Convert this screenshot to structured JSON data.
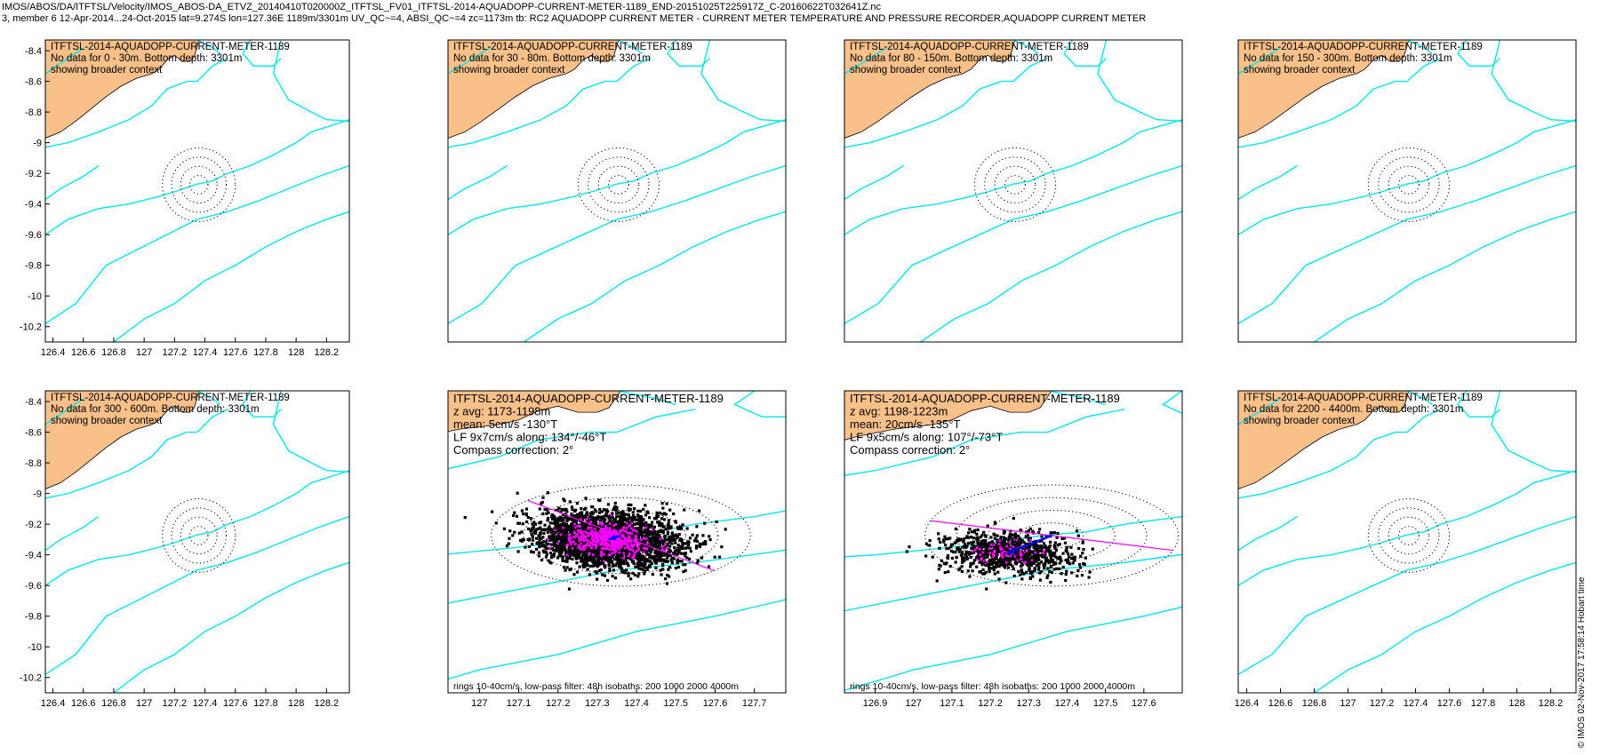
{
  "header": {
    "line1": "IMOS/ABOS/DA/ITFTSL/Velocity/IMOS_ABOS-DA_ETVZ_20140410T020000Z_ITFTSL_FV01_ITFTSL-2014-AQUADOPP-CURRENT-METER-1189_END-20151025T225917Z_C-20160622T032641Z.nc",
    "line2": "3, member 6 12-Apr-2014...24-Oct-2015 lat=9.274S lon=127.36E 1189m/3301m UV_QC~=4, ABSI_QC~=4 zc=1173m tb: RC2 AQUADOPP CURRENT METER - CURRENT METER TEMPERATURE AND PRESSURE RECORDER,AQUADOPP CURRENT METER"
  },
  "stamp": "© IMOS 02-Nov-2017 17:58:14 Hobart time",
  "colors": {
    "land": "#f9c08a",
    "isobath": "#00e5ee",
    "rings": "#000000",
    "scatter": "#000000",
    "lowpass": "#ff00ff",
    "major_axis": "#ff00ff",
    "mean_arrow": "#0000ff"
  },
  "chart_data": [
    {
      "type": "map",
      "panel": "1",
      "text_lines": [
        "ITFTSL-2014-AQUADOPP-CURRENT-METER-1189",
        "No data for 0 - 30m. Bottom depth: 3301m",
        "showing broader context"
      ],
      "xlim": [
        126.35,
        128.35
      ],
      "ylim": [
        -10.3,
        -8.33
      ],
      "xticks": [
        126.4,
        126.6,
        126.8,
        127,
        127.2,
        127.4,
        127.6,
        127.8,
        128,
        128.2
      ],
      "yticks": [
        -8.4,
        -8.6,
        -8.8,
        -9,
        -9.2,
        -9.4,
        -9.6,
        -9.8,
        -10,
        -10.2
      ],
      "center": [
        127.36,
        -9.274
      ],
      "rings_deg": [
        0.06,
        0.12,
        0.18,
        0.24
      ]
    },
    {
      "type": "map",
      "panel": "2",
      "text_lines": [
        "ITFTSL-2014-AQUADOPP-CURRENT-METER-1189",
        "No data for 30 - 80m. Bottom depth: 3301m",
        "showing broader context"
      ],
      "xlim": [
        126.35,
        128.35
      ],
      "ylim": [
        -10.3,
        -8.33
      ],
      "center": [
        127.36,
        -9.274
      ],
      "rings_deg": [
        0.06,
        0.12,
        0.18,
        0.24
      ]
    },
    {
      "type": "map",
      "panel": "3",
      "text_lines": [
        "ITFTSL-2014-AQUADOPP-CURRENT-METER-1189",
        "No data for 80 - 150m. Bottom depth: 3301m",
        "showing broader context"
      ],
      "xlim": [
        126.35,
        128.35
      ],
      "ylim": [
        -10.3,
        -8.33
      ],
      "center": [
        127.36,
        -9.274
      ],
      "rings_deg": [
        0.06,
        0.12,
        0.18,
        0.24
      ]
    },
    {
      "type": "map",
      "panel": "4",
      "text_lines": [
        "ITFTSL-2014-AQUADOPP-CURRENT-METER-1189",
        "No data for 150 - 300m. Bottom depth: 3301m",
        "showing broader context"
      ],
      "xlim": [
        126.35,
        128.35
      ],
      "ylim": [
        -10.3,
        -8.33
      ],
      "center": [
        127.36,
        -9.274
      ],
      "rings_deg": [
        0.06,
        0.12,
        0.18,
        0.24
      ]
    },
    {
      "type": "map",
      "panel": "5",
      "text_lines": [
        "ITFTSL-2014-AQUADOPP-CURRENT-METER-1189",
        "No data for 300 - 600m. Bottom depth: 3301m",
        "showing broader context"
      ],
      "xlim": [
        126.35,
        128.35
      ],
      "ylim": [
        -10.3,
        -8.33
      ],
      "xticks": [
        126.4,
        126.6,
        126.8,
        127,
        127.2,
        127.4,
        127.6,
        127.8,
        128,
        128.2
      ],
      "yticks": [
        -8.4,
        -8.6,
        -8.8,
        -9,
        -9.2,
        -9.4,
        -9.6,
        -9.8,
        -10,
        -10.2
      ],
      "center": [
        127.36,
        -9.274
      ],
      "rings_deg": [
        0.06,
        0.12,
        0.18,
        0.24
      ]
    },
    {
      "type": "scatter",
      "panel": "6",
      "text_lines": [
        "ITFTSL-2014-AQUADOPP-CURRENT-METER-1189",
        "z avg: 1173-1198m",
        "mean: 5cm/s -130°T",
        "LF 9x7cm/s along: 134°/-46°T",
        "Compass correction: 2°"
      ],
      "footer": "rings 10-40cm/s, low-pass filter: 48h isobaths: 200 1000 2000 4000m",
      "xlim": [
        126.92,
        127.78
      ],
      "ylim": [
        -10.3,
        -8.33
      ],
      "xticks": [
        127,
        127.1,
        127.2,
        127.3,
        127.4,
        127.5,
        127.6,
        127.7
      ],
      "center": [
        127.36,
        -9.274
      ],
      "rings_deg": [
        0.0825,
        0.165,
        0.2475,
        0.33
      ],
      "scatter": {
        "spread_cm_s": [
          12,
          10
        ],
        "n_points": 2600,
        "n_lowpass": 450
      },
      "major_axis_deg_true": 134,
      "mean_vector": {
        "speed_cm_s": 5,
        "dir_deg_true": -130
      }
    },
    {
      "type": "scatter",
      "panel": "7",
      "text_lines": [
        "ITFTSL-2014-AQUADOPP-CURRENT-METER-1189",
        "z avg: 1198-1223m",
        "mean: 20cm/s -135°T",
        "LF 9x5cm/s along: 107°/-73°T",
        "Compass correction: 2°"
      ],
      "footer": "rings 10-40cm/s, low-pass filter: 48h isobaths: 200 1000 2000 4000m",
      "xlim": [
        126.82,
        127.7
      ],
      "ylim": [
        -10.3,
        -8.33
      ],
      "xticks": [
        126.9,
        127,
        127.1,
        127.2,
        127.3,
        127.4,
        127.5,
        127.6
      ],
      "center": [
        127.36,
        -9.274
      ],
      "rings_deg": [
        0.0825,
        0.165,
        0.2475,
        0.33
      ],
      "scatter": {
        "spread_cm_s": [
          10,
          8
        ],
        "n_points": 900,
        "n_lowpass": 60
      },
      "major_axis_deg_true": 107,
      "mean_vector": {
        "speed_cm_s": 20,
        "dir_deg_true": -135
      }
    },
    {
      "type": "map",
      "panel": "8",
      "text_lines": [
        "ITFTSL-2014-AQUADOPP-CURRENT-METER-1189",
        "No data for 2200 - 4400m. Bottom depth: 3301m",
        "showing broader context"
      ],
      "xlim": [
        126.35,
        128.35
      ],
      "ylim": [
        -10.3,
        -8.33
      ],
      "xticks": [
        126.4,
        126.6,
        126.8,
        127,
        127.2,
        127.4,
        127.6,
        127.8,
        128,
        128.2
      ],
      "center": [
        127.36,
        -9.274
      ],
      "rings_deg": [
        0.06,
        0.12,
        0.18,
        0.24
      ]
    }
  ]
}
